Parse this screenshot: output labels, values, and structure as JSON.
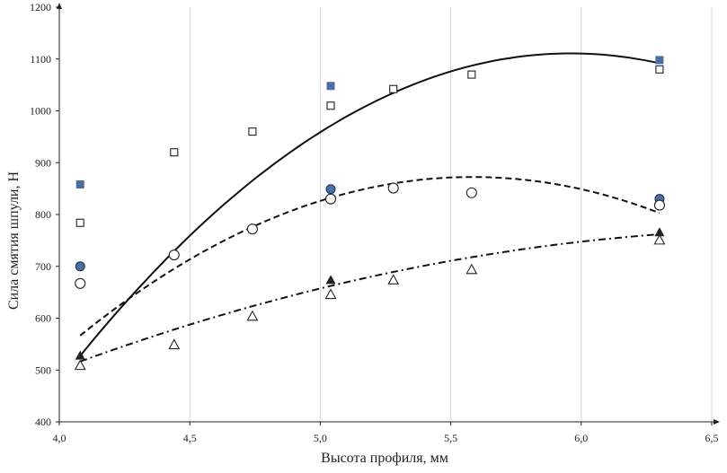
{
  "chart_data": {
    "type": "scatter",
    "title": "",
    "xlabel": "Высота профиля, мм",
    "ylabel": "Сила смятия шпули, Н",
    "xlim": [
      4.0,
      6.5
    ],
    "ylim": [
      400,
      1200
    ],
    "x_ticks": [
      4.0,
      4.5,
      5.0,
      5.5,
      6.0,
      6.5
    ],
    "y_ticks": [
      400,
      500,
      600,
      700,
      800,
      900,
      1000,
      1100,
      1200
    ],
    "x_tick_labels": [
      "4,0",
      "4,5",
      "5,0",
      "5,5",
      "6,0",
      "6,5"
    ],
    "y_tick_labels": [
      "400",
      "500",
      "600",
      "700",
      "800",
      "900",
      "1000",
      "1100",
      "1200"
    ],
    "grid": "vertical",
    "legend": "none",
    "series": [
      {
        "marker": "square-filled",
        "color": "#4a6fa5",
        "points": [
          [
            4.08,
            858
          ],
          [
            5.04,
            1048
          ],
          [
            6.3,
            1098
          ]
        ],
        "trend": {
          "style": "solid",
          "coeffs": [
            -165.2,
            1969.0,
            -4756.2
          ]
        }
      },
      {
        "marker": "square-open",
        "color": "#222222",
        "points": [
          [
            4.08,
            784
          ],
          [
            4.44,
            920
          ],
          [
            4.74,
            960
          ],
          [
            5.04,
            1010
          ],
          [
            5.28,
            1042
          ],
          [
            5.58,
            1070
          ],
          [
            6.3,
            1080
          ]
        ]
      },
      {
        "marker": "circle-filled",
        "color": "#4a6fa5",
        "points": [
          [
            4.08,
            700
          ],
          [
            5.04,
            849
          ],
          [
            6.3,
            830
          ]
        ]
      },
      {
        "marker": "circle-open",
        "color": "#222222",
        "points": [
          [
            4.08,
            667
          ],
          [
            4.44,
            722
          ],
          [
            4.74,
            772
          ],
          [
            5.04,
            830
          ],
          [
            5.28,
            851
          ],
          [
            5.58,
            842
          ],
          [
            6.3,
            818
          ]
        ],
        "trend": {
          "style": "dashed",
          "coeffs": [
            -135.4,
            1512.0,
            -3348.7
          ]
        }
      },
      {
        "marker": "triangle-filled",
        "color": "#222222",
        "points": [
          [
            4.08,
            527
          ],
          [
            5.04,
            673
          ],
          [
            6.3,
            765
          ]
        ],
        "trend": {
          "style": "dashdot",
          "coeffs": [
            -32.8,
            451.1,
            -778.2
          ]
        }
      },
      {
        "marker": "triangle-open",
        "color": "#222222",
        "points": [
          [
            4.08,
            508
          ],
          [
            4.44,
            548
          ],
          [
            4.74,
            603
          ],
          [
            5.04,
            645
          ],
          [
            5.28,
            673
          ],
          [
            5.58,
            693
          ],
          [
            6.3,
            750
          ]
        ]
      }
    ]
  }
}
